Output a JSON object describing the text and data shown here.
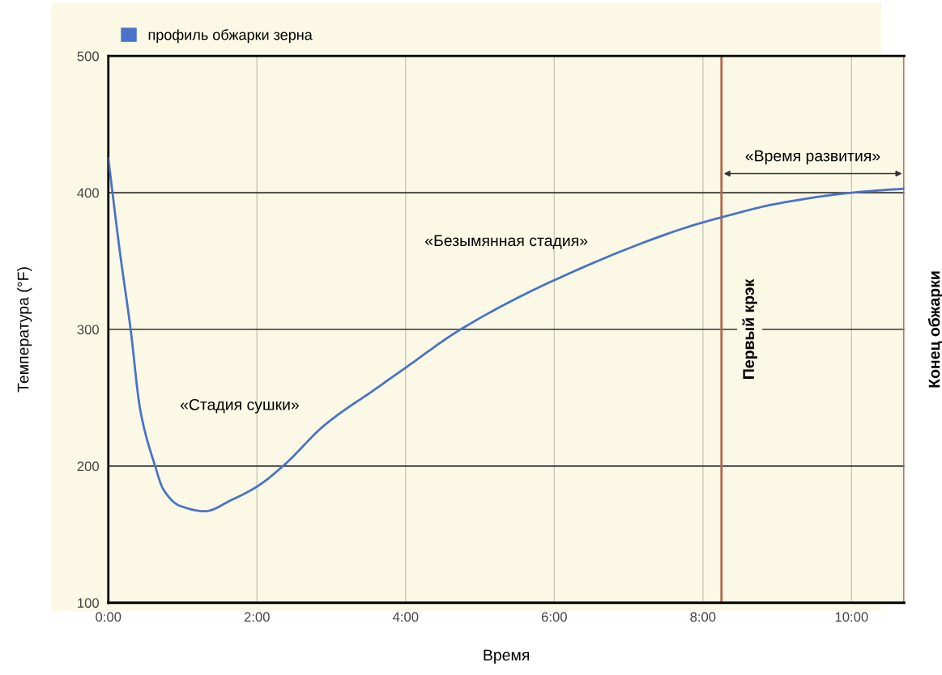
{
  "chart_data": {
    "type": "line",
    "xlabel": "Время",
    "ylabel": "Температура (°F)",
    "x": [
      0,
      0.15,
      0.3,
      0.43,
      0.63,
      0.74,
      0.96,
      1.3,
      1.65,
      2.0,
      2.35,
      2.91,
      3.61,
      4.0,
      4.74,
      6.0,
      7.8,
      8.25,
      9.0,
      10.0,
      10.71
    ],
    "series": [
      {
        "name": "профиль обжарки зерна",
        "color": "#4a72c8",
        "values": [
          425,
          359,
          300,
          241,
          200,
          183,
          171,
          167,
          175,
          185,
          200,
          230,
          257,
          272,
          300,
          336,
          375,
          382,
          392,
          400,
          403
        ]
      }
    ],
    "xlim": [
      0,
      10.71
    ],
    "xticks": [
      {
        "value": 0,
        "label": "0:00"
      },
      {
        "value": 2,
        "label": "2:00"
      },
      {
        "value": 4,
        "label": "4:00"
      },
      {
        "value": 6,
        "label": "6:00"
      },
      {
        "value": 8,
        "label": "8:00"
      },
      {
        "value": 10,
        "label": "10:00"
      }
    ],
    "ylim": [
      100,
      500
    ],
    "yticks": [
      100,
      200,
      300,
      400,
      500
    ],
    "grid": true,
    "legend": "top left",
    "marker": "none",
    "line_style": "solid",
    "ref_lines": [
      {
        "axis": "x",
        "value": 8.25,
        "label": "Первый крэк",
        "color": "#b5654a"
      },
      {
        "axis": "x",
        "value": 10.71,
        "label": "Конец обжарки",
        "color": "#b5654a"
      }
    ],
    "annotations": [
      "«Стадия сушки»",
      "«Безымянная стадия»",
      "«Время развития»"
    ]
  }
}
